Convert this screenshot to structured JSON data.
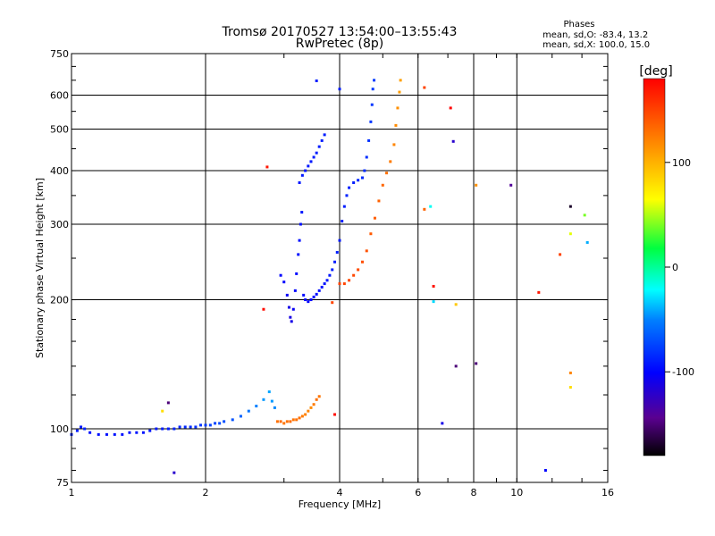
{
  "chart_data": {
    "type": "scatter",
    "title": "Tromsø 20170527 13:54:00–13:55:43",
    "subtitle": "RwPretec (8p)",
    "xlabel": "Frequency [MHz]",
    "ylabel": "Stationary phase Virtual Height [km]",
    "x_scale": "log",
    "y_scale": "log",
    "xlim": [
      1,
      16
    ],
    "ylim": [
      75,
      750
    ],
    "x_ticks": [
      1,
      2,
      4,
      6,
      8,
      10,
      16
    ],
    "x_tick_labels": [
      "1",
      "2",
      "4",
      "6",
      "8",
      "10",
      "16"
    ],
    "x_grid": [
      2,
      4,
      6,
      8,
      10
    ],
    "y_ticks": [
      75,
      100,
      200,
      300,
      400,
      500,
      600,
      750
    ],
    "y_tick_labels": [
      "75",
      "100",
      "200",
      "300",
      "400",
      "500",
      "600",
      "750"
    ],
    "y_grid": [
      100,
      200,
      300,
      400,
      500,
      600
    ],
    "grid": true,
    "info": {
      "heading": "Phases",
      "line1": "mean, sd,O: -83.4, 13.2",
      "line2": "mean, sd,X: 100.0, 15.0"
    },
    "colorbar": {
      "label": "[deg]",
      "min": -180,
      "max": 180,
      "ticks": [
        100,
        0,
        -100
      ],
      "tick_labels": [
        "100",
        "0",
        "-100"
      ],
      "colormap": "rainbow"
    },
    "series": [
      {
        "points": [
          [
            1.0,
            97,
            -90
          ],
          [
            1.03,
            99,
            -90
          ],
          [
            1.05,
            101,
            -92
          ],
          [
            1.07,
            100,
            -88
          ],
          [
            1.1,
            98,
            -95
          ],
          [
            1.15,
            97,
            -95
          ],
          [
            1.2,
            97,
            -95
          ],
          [
            1.25,
            97,
            -94
          ],
          [
            1.3,
            97,
            -95
          ],
          [
            1.35,
            98,
            -94
          ],
          [
            1.4,
            98,
            -93
          ],
          [
            1.45,
            98,
            -94
          ],
          [
            1.5,
            99,
            -92
          ],
          [
            1.55,
            100,
            -92
          ],
          [
            1.6,
            100,
            -90
          ],
          [
            1.65,
            100,
            -90
          ],
          [
            1.7,
            100,
            -88
          ],
          [
            1.75,
            101,
            -86
          ],
          [
            1.8,
            101,
            -85
          ],
          [
            1.85,
            101,
            -84
          ],
          [
            1.9,
            101,
            -82
          ],
          [
            1.95,
            102,
            -80
          ],
          [
            2.0,
            102,
            -78
          ],
          [
            2.05,
            102,
            -76
          ],
          [
            2.1,
            103,
            -74
          ],
          [
            2.15,
            103,
            -72
          ],
          [
            2.2,
            104,
            -70
          ],
          [
            2.3,
            105,
            -68
          ],
          [
            2.4,
            107,
            -62
          ],
          [
            2.5,
            110,
            -55
          ],
          [
            2.6,
            113,
            -50
          ],
          [
            2.7,
            117,
            -45
          ],
          [
            2.78,
            122,
            -42
          ],
          [
            2.82,
            116,
            -45
          ],
          [
            2.86,
            112,
            -48
          ]
        ]
      },
      {
        "points": [
          [
            2.9,
            104,
            130
          ],
          [
            2.95,
            104,
            132
          ],
          [
            3.0,
            103,
            128
          ],
          [
            3.05,
            104,
            130
          ],
          [
            3.1,
            104,
            131
          ],
          [
            3.15,
            105,
            128
          ],
          [
            3.2,
            105,
            130
          ],
          [
            3.25,
            106,
            130
          ],
          [
            3.3,
            107,
            125
          ],
          [
            3.35,
            108,
            122
          ],
          [
            3.4,
            110,
            120
          ],
          [
            3.45,
            112,
            118
          ],
          [
            3.5,
            114,
            125
          ],
          [
            3.55,
            117,
            130
          ],
          [
            3.6,
            119,
            128
          ]
        ]
      },
      {
        "points": [
          [
            2.95,
            228,
            -100
          ],
          [
            3.0,
            220,
            -100
          ],
          [
            3.05,
            205,
            -105
          ],
          [
            3.08,
            192,
            -110
          ],
          [
            3.1,
            182,
            -112
          ],
          [
            3.12,
            178,
            -110
          ],
          [
            3.15,
            190,
            -105
          ],
          [
            3.18,
            210,
            -100
          ],
          [
            3.2,
            230,
            -98
          ],
          [
            3.23,
            255,
            -95
          ],
          [
            3.25,
            275,
            -95
          ],
          [
            3.27,
            300,
            -95
          ],
          [
            3.29,
            320,
            -92
          ],
          [
            3.32,
            205,
            -98
          ],
          [
            3.35,
            200,
            -100
          ],
          [
            3.4,
            198,
            -100
          ],
          [
            3.45,
            200,
            -100
          ],
          [
            3.5,
            203,
            -98
          ],
          [
            3.55,
            206,
            -97
          ],
          [
            3.6,
            210,
            -96
          ],
          [
            3.65,
            214,
            -95
          ],
          [
            3.7,
            218,
            -94
          ],
          [
            3.75,
            222,
            -93
          ],
          [
            3.8,
            228,
            -92
          ],
          [
            3.85,
            235,
            -90
          ],
          [
            3.9,
            245,
            -90
          ],
          [
            3.95,
            258,
            -90
          ],
          [
            4.0,
            275,
            -92
          ],
          [
            4.05,
            305,
            -90
          ],
          [
            4.1,
            330,
            -90
          ],
          [
            4.15,
            350,
            -88
          ],
          [
            4.2,
            365,
            -88
          ],
          [
            4.3,
            375,
            -90
          ],
          [
            4.4,
            380,
            -86
          ],
          [
            4.5,
            385,
            -85
          ],
          [
            4.55,
            400,
            -84
          ],
          [
            4.6,
            430,
            -83
          ],
          [
            4.65,
            470,
            -82
          ],
          [
            4.7,
            520,
            -80
          ],
          [
            4.73,
            570,
            -80
          ],
          [
            4.75,
            620,
            -78
          ],
          [
            4.78,
            650,
            -78
          ]
        ]
      },
      {
        "points": [
          [
            3.25,
            375,
            -92
          ],
          [
            3.3,
            390,
            -92
          ],
          [
            3.35,
            400,
            -92
          ],
          [
            3.4,
            410,
            -92
          ],
          [
            3.45,
            420,
            -92
          ],
          [
            3.5,
            430,
            -90
          ],
          [
            3.55,
            440,
            -90
          ],
          [
            3.6,
            455,
            -90
          ],
          [
            3.65,
            470,
            -90
          ],
          [
            3.7,
            485,
            -90
          ],
          [
            3.55,
            648,
            -90
          ],
          [
            4.0,
            620,
            -90
          ]
        ]
      },
      {
        "points": [
          [
            4.0,
            218,
            150
          ],
          [
            4.1,
            218,
            150
          ],
          [
            4.2,
            222,
            148
          ],
          [
            4.3,
            228,
            148
          ],
          [
            4.4,
            235,
            146
          ],
          [
            4.5,
            245,
            145
          ],
          [
            4.6,
            260,
            143
          ],
          [
            4.7,
            285,
            140
          ],
          [
            4.8,
            310,
            138
          ],
          [
            4.9,
            340,
            136
          ],
          [
            5.0,
            370,
            134
          ],
          [
            5.1,
            395,
            130
          ],
          [
            5.2,
            420,
            125
          ],
          [
            5.3,
            460,
            120
          ],
          [
            5.35,
            510,
            118
          ],
          [
            5.4,
            560,
            115
          ],
          [
            5.45,
            610,
            110
          ],
          [
            5.48,
            650,
            108
          ]
        ]
      },
      {
        "points": [
          [
            2.75,
            408,
            170
          ],
          [
            2.7,
            190,
            175
          ],
          [
            3.85,
            197,
            150
          ],
          [
            3.9,
            108,
            175
          ],
          [
            6.2,
            625,
            150
          ],
          [
            6.2,
            325,
            135
          ],
          [
            6.4,
            330,
            -20
          ],
          [
            6.5,
            215,
            172
          ],
          [
            6.5,
            198,
            -30
          ],
          [
            6.8,
            103,
            -110
          ],
          [
            7.1,
            560,
            180
          ],
          [
            7.2,
            468,
            -120
          ],
          [
            7.3,
            195,
            90
          ],
          [
            7.3,
            140,
            -150
          ],
          [
            8.1,
            370,
            115
          ],
          [
            8.1,
            142,
            -150
          ],
          [
            9.7,
            370,
            -140
          ],
          [
            11.2,
            208,
            170
          ],
          [
            11.6,
            80,
            -100
          ],
          [
            12.5,
            255,
            150
          ],
          [
            13.2,
            330,
            -170
          ],
          [
            13.2,
            285,
            60
          ],
          [
            13.2,
            135,
            120
          ],
          [
            13.2,
            125,
            80
          ],
          [
            14.2,
            315,
            40
          ],
          [
            14.4,
            272,
            -40
          ],
          [
            1.65,
            115,
            -150
          ],
          [
            1.7,
            79,
            -120
          ],
          [
            1.6,
            110,
            80
          ]
        ]
      }
    ]
  }
}
